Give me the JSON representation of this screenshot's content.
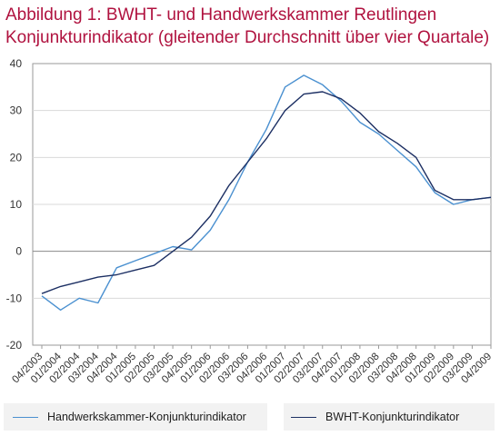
{
  "title_line1": "Abbildung 1: BWHT- und Handwerkskammer  Reutlingen",
  "title_line2": "Konjunkturindikator (gleitender Durchschnitt über vier Quartale)",
  "colors": {
    "title": "#b0123f",
    "handwerkskammer": "#4a90d0",
    "bwht": "#1c2f63",
    "zeroline": "#888888",
    "grid": "#d9d9d9"
  },
  "chart_data": {
    "type": "line",
    "categories": [
      "04/2003",
      "01/2004",
      "02/2004",
      "03/2004",
      "04/2004",
      "01/2005",
      "02/2005",
      "03/2005",
      "04/2005",
      "01/2006",
      "02/2006",
      "03/2006",
      "04/2006",
      "01/2007",
      "02/2007",
      "03/2007",
      "04/2007",
      "01/2008",
      "02/2008",
      "03/2008",
      "04/2008",
      "01/2009",
      "02/2009",
      "03/2009",
      "04/2009"
    ],
    "yticks": [
      40,
      30,
      20,
      10,
      0,
      -10,
      -20
    ],
    "ylim": [
      -20,
      40
    ],
    "series": [
      {
        "name": "Handwerkskammer-Konjunkturindikator",
        "color": "#4a90d0",
        "values": [
          -9.5,
          -12.5,
          -10,
          -11,
          -3.5,
          -2,
          -0.5,
          1,
          0.3,
          4.5,
          11,
          19,
          26,
          35,
          37.5,
          35.5,
          32,
          27.5,
          25,
          21.5,
          18,
          12.5,
          10,
          11,
          11.5
        ]
      },
      {
        "name": "BWHT-Konjunkturindikator",
        "color": "#1c2f63",
        "values": [
          -9,
          -7.5,
          -6.5,
          -5.5,
          -5,
          -4,
          -3,
          0,
          3,
          7.5,
          14,
          19,
          24,
          30,
          33.5,
          34,
          32.5,
          29.5,
          25.5,
          23,
          20,
          13,
          11,
          11,
          11.5
        ]
      }
    ],
    "grid": true,
    "legend": "bottom"
  }
}
